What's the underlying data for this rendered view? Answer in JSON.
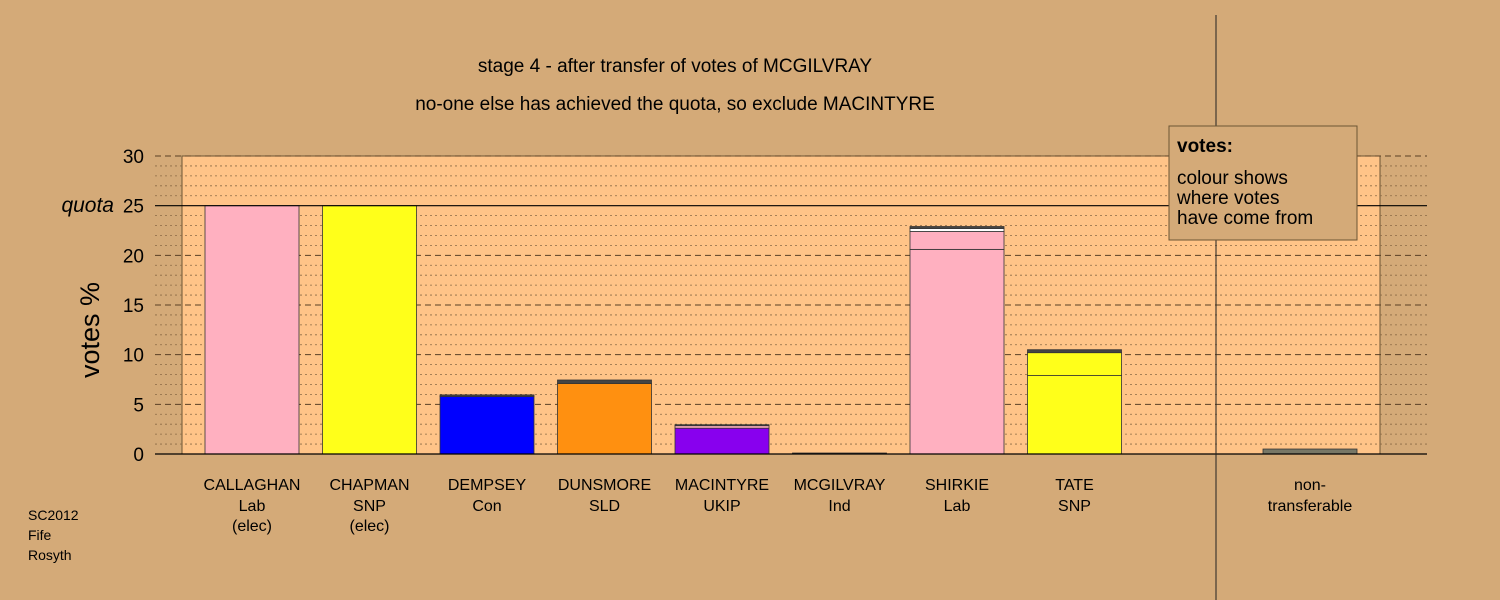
{
  "chart_data": {
    "type": "bar",
    "stacked": true,
    "title": "stage 4 - after transfer of votes of MCGILVRAY",
    "subtitle": "no-one else has achieved the quota, so exclude MACINTYRE",
    "ylabel": "votes %",
    "ylim": [
      0,
      30
    ],
    "yticks": [
      "0",
      "5",
      "10",
      "15",
      "20",
      "25",
      "30"
    ],
    "quota": {
      "label": "quota",
      "value": 25
    },
    "grid": true,
    "candidates": [
      {
        "name": "CALLAGHAN",
        "party": "Lab",
        "status": "(elec)",
        "segments": [
          {
            "value": 25.0,
            "color": "#ffb0c0"
          }
        ]
      },
      {
        "name": "CHAPMAN",
        "party": "SNP",
        "status": "(elec)",
        "segments": [
          {
            "value": 25.0,
            "color": "#ffff1a"
          }
        ]
      },
      {
        "name": "DEMPSEY",
        "party": "Con",
        "status": "",
        "segments": [
          {
            "value": 5.8,
            "color": "#0000ff"
          },
          {
            "value": 0.15,
            "color": "#444444"
          }
        ]
      },
      {
        "name": "DUNSMORE",
        "party": "SLD",
        "status": "",
        "segments": [
          {
            "value": 7.1,
            "color": "#ff9010"
          },
          {
            "value": 0.35,
            "color": "#444444"
          }
        ]
      },
      {
        "name": "MACINTYRE",
        "party": "UKIP",
        "status": "",
        "segments": [
          {
            "value": 2.6,
            "color": "#8800ee"
          },
          {
            "value": 0.25,
            "color": "#ffb0c0"
          },
          {
            "value": 0.1,
            "color": "#444444"
          }
        ]
      },
      {
        "name": "MCGILVRAY",
        "party": "Ind",
        "status": "",
        "segments": [
          {
            "value": 0.1,
            "color": "#444444"
          }
        ]
      },
      {
        "name": "SHIRKIE",
        "party": "Lab",
        "status": "",
        "segments": [
          {
            "value": 20.6,
            "color": "#ffb0c0"
          },
          {
            "value": 1.8,
            "color": "#ffb0c0"
          },
          {
            "value": 0.3,
            "color": "#ffffff"
          },
          {
            "value": 0.2,
            "color": "#444444"
          }
        ]
      },
      {
        "name": "TATE",
        "party": "SNP",
        "status": "",
        "segments": [
          {
            "value": 7.9,
            "color": "#ffff1a"
          },
          {
            "value": 2.3,
            "color": "#ffff1a"
          },
          {
            "value": 0.3,
            "color": "#444444"
          }
        ]
      }
    ],
    "non_transferable": {
      "label_line1": "non-",
      "label_line2": "transferable",
      "value": 0.5,
      "color": "#777766"
    },
    "legend": {
      "title": "votes:",
      "lines": [
        "colour shows",
        "where votes",
        "have come from"
      ]
    }
  },
  "footer": {
    "line1": "SC2012",
    "line2": "Fife",
    "line3": "Rosyth"
  },
  "colors": {
    "background": "#d4aa78",
    "plot_area": "#ffc488",
    "axis": "#000000"
  }
}
